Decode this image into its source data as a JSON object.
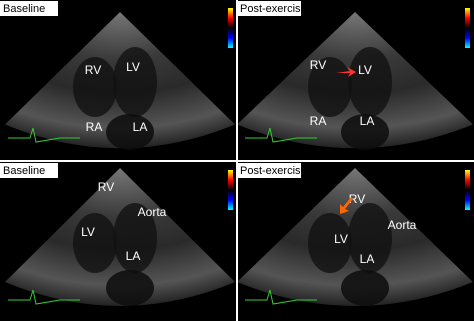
{
  "panels": [
    {
      "caption": "Baseline",
      "labels": [
        "RV",
        "LV",
        "RA",
        "LA"
      ]
    },
    {
      "caption": "Post-exercise",
      "labels": [
        "RV",
        "LV",
        "RA",
        "LA"
      ]
    },
    {
      "caption": "Baseline",
      "labels": [
        "RV",
        "Aorta",
        "LV",
        "LA"
      ]
    },
    {
      "caption": "Post-exercise",
      "labels": [
        "RV",
        "Aorta",
        "LV",
        "LA"
      ]
    }
  ]
}
